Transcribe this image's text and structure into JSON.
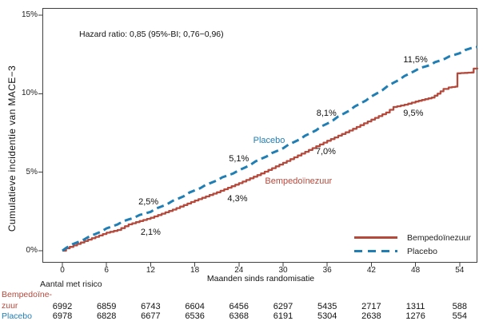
{
  "figure": {
    "background": "#ffffff",
    "axis_color": "#3f3f3f"
  },
  "chart_data": {
    "type": "line",
    "subtype": "kaplan-meier-cumulative-incidence",
    "title": "",
    "hazard_ratio_text": "Hazard ratio: 0,85 (95%-BI; 0,76−0,96)",
    "ylabel": "Cumulatieve incidentie van MACE−3",
    "xlabel": "Maanden sinds randomisatie",
    "ylim": [
      0,
      15
    ],
    "xlim": [
      -2.7,
      56.5
    ],
    "grid": false,
    "y_ticks": [
      {
        "label": "0%",
        "value": 0
      },
      {
        "label": "5%",
        "value": 5
      },
      {
        "label": "10%",
        "value": 10
      },
      {
        "label": "15%",
        "value": 15
      }
    ],
    "x_ticks": [
      0,
      6,
      12,
      18,
      24,
      30,
      36,
      42,
      48,
      54
    ],
    "legend_position": "inside-bottom-right",
    "series": [
      {
        "name": "Bempedoïnezuur",
        "color": "#b4493c",
        "style": "solid",
        "annotated_values": {
          "12": 2.1,
          "24": 4.3,
          "36": 7.0,
          "48": 9.5
        },
        "points": [
          [
            0,
            0
          ],
          [
            0.5,
            0.15
          ],
          [
            3,
            0.62
          ],
          [
            6,
            1.15
          ],
          [
            7.5,
            1.32
          ],
          [
            9,
            1.68
          ],
          [
            12,
            2.1
          ],
          [
            15,
            2.62
          ],
          [
            18,
            3.2
          ],
          [
            21,
            3.72
          ],
          [
            24,
            4.3
          ],
          [
            27,
            4.92
          ],
          [
            30,
            5.6
          ],
          [
            33,
            6.3
          ],
          [
            36,
            7.0
          ],
          [
            39,
            7.65
          ],
          [
            42,
            8.35
          ],
          [
            44,
            8.8
          ],
          [
            45,
            9.15
          ],
          [
            46.5,
            9.3
          ],
          [
            48,
            9.5
          ],
          [
            49.3,
            9.65
          ],
          [
            50.2,
            9.75
          ],
          [
            51,
            10.0
          ],
          [
            51.8,
            10.3
          ],
          [
            52.5,
            10.4
          ],
          [
            53.4,
            10.45
          ],
          [
            53.7,
            11.3
          ],
          [
            55.6,
            11.35
          ],
          [
            55.9,
            11.6
          ],
          [
            56.4,
            11.65
          ]
        ]
      },
      {
        "name": "Placebo",
        "color": "#1f7eb4",
        "style": "dashed",
        "annotated_values": {
          "12": 2.5,
          "24": 5.1,
          "36": 8.1,
          "48": 11.5
        },
        "points": [
          [
            0,
            0
          ],
          [
            0.5,
            0.2
          ],
          [
            3,
            0.75
          ],
          [
            6,
            1.4
          ],
          [
            9,
            2.0
          ],
          [
            12,
            2.5
          ],
          [
            15,
            3.15
          ],
          [
            18,
            3.85
          ],
          [
            21,
            4.5
          ],
          [
            24,
            5.1
          ],
          [
            27,
            5.85
          ],
          [
            30,
            6.55
          ],
          [
            33,
            7.3
          ],
          [
            36,
            8.1
          ],
          [
            39,
            8.95
          ],
          [
            42,
            9.8
          ],
          [
            45,
            10.7
          ],
          [
            48,
            11.5
          ],
          [
            50,
            11.85
          ],
          [
            52,
            12.25
          ],
          [
            54,
            12.6
          ],
          [
            55.5,
            12.9
          ],
          [
            56.4,
            13.0
          ]
        ]
      }
    ],
    "annotations": [
      {
        "text": "2,5%",
        "month": 11.7,
        "y_pct": 3.1,
        "series": "Placebo"
      },
      {
        "text": "2,1%",
        "month": 12.0,
        "y_pct": 1.15,
        "series": "Bempedoïnezuur"
      },
      {
        "text": "5,1%",
        "month": 24.0,
        "y_pct": 5.85,
        "series": "Placebo"
      },
      {
        "text": "4,3%",
        "month": 23.8,
        "y_pct": 3.3,
        "series": "Bempedoïnezuur"
      },
      {
        "text": "8,1%",
        "month": 35.9,
        "y_pct": 8.75,
        "series": "Placebo"
      },
      {
        "text": "7,0%",
        "month": 35.8,
        "y_pct": 6.3,
        "series": "Bempedoïnezuur"
      },
      {
        "text": "11,5%",
        "month": 48.0,
        "y_pct": 12.15,
        "series": "Placebo"
      },
      {
        "text": "9,5%",
        "month": 47.7,
        "y_pct": 8.75,
        "series": "Bempedoïnezuur"
      }
    ],
    "series_labels": [
      {
        "text": "Placebo",
        "month": 28.1,
        "y_pct": 7.0,
        "series_index": 1
      },
      {
        "text": "Bempedoïnezuur",
        "month": 32.1,
        "y_pct": 4.42,
        "series_index": 0
      }
    ]
  },
  "risk_table": {
    "title": "Aantal met risico",
    "columns_months": [
      0,
      6,
      12,
      18,
      24,
      30,
      36,
      42,
      48,
      54
    ],
    "rows": [
      {
        "label": "Bempedoïnezuur",
        "label_lines": [
          "Bempedoïne-",
          "zuur"
        ],
        "color": "#b4493c",
        "values": [
          6992,
          6859,
          6743,
          6604,
          6456,
          6297,
          5435,
          2717,
          1311,
          588
        ]
      },
      {
        "label": "Placebo",
        "label_lines": [
          "Placebo"
        ],
        "color": "#1f7eb4",
        "values": [
          6978,
          6828,
          6677,
          6536,
          6368,
          6191,
          5304,
          2638,
          1276,
          554
        ]
      }
    ]
  }
}
